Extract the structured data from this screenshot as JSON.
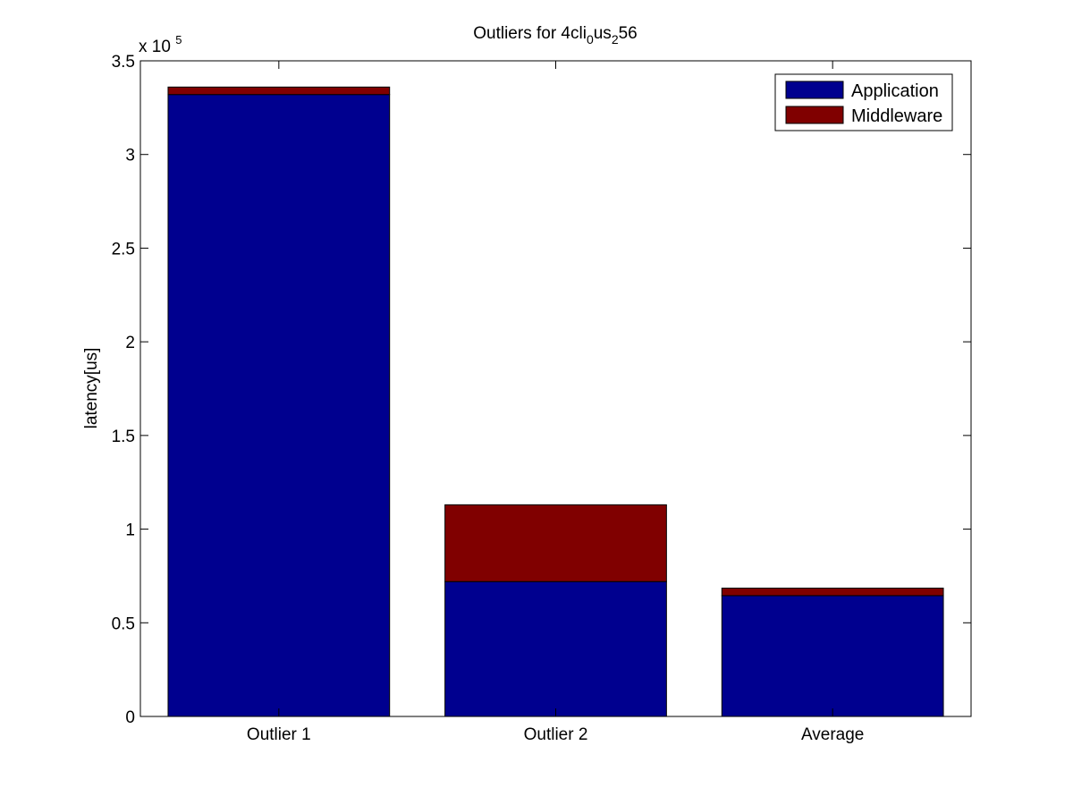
{
  "chart_data": {
    "type": "bar",
    "stacked": true,
    "title": {
      "parts": [
        {
          "text": "Outliers for 4cli",
          "sub": false
        },
        {
          "text": "0",
          "sub": true
        },
        {
          "text": "us",
          "sub": false
        },
        {
          "text": "2",
          "sub": true
        },
        {
          "text": "56",
          "sub": false
        }
      ]
    },
    "xlabel": "",
    "ylabel": "latency[us]",
    "categories": [
      "Outlier 1",
      "Outlier 2",
      "Average"
    ],
    "series": [
      {
        "name": "Application",
        "color": "#00008f",
        "values": [
          332000,
          72000,
          64500
        ]
      },
      {
        "name": "Middleware",
        "color": "#800000",
        "values": [
          4000,
          41000,
          4000
        ]
      }
    ],
    "ylim": [
      0,
      350000
    ],
    "y_ticks": [
      0,
      50000,
      100000,
      150000,
      200000,
      250000,
      300000,
      350000
    ],
    "y_tick_labels": [
      "0",
      "0.5",
      "1",
      "1.5",
      "2",
      "2.5",
      "3",
      "3.5"
    ],
    "y_multiplier": {
      "base": "x 10",
      "exponent": "5"
    },
    "grid": false,
    "legend_position": "top-right"
  }
}
